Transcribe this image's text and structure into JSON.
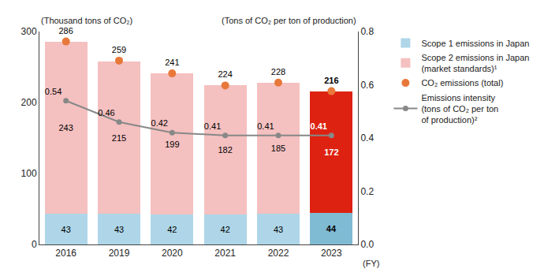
{
  "chart_data": {
    "type": "bar",
    "stacked": true,
    "data_labels": true,
    "grid": false,
    "legend": "right",
    "xlabel": "(FY)",
    "ylabel": "(Thousand tons of CO₂)",
    "y2label": "(Tons of CO₂ per ton of production)",
    "categories": [
      "2016",
      "2019",
      "2020",
      "2021",
      "2022",
      "2023"
    ],
    "series": [
      {
        "name": "Scope 1 emissions in Japan",
        "type": "bar",
        "colors": [
          "#aed6e8",
          "#aed6e8",
          "#aed6e8",
          "#aed6e8",
          "#aed6e8",
          "#80bbd4"
        ],
        "values": [
          43,
          43,
          42,
          42,
          43,
          44
        ]
      },
      {
        "name": "Scope 2 emissions in Japan\n(market standards)¹",
        "type": "bar",
        "colors": [
          "#f5c0c0",
          "#f5c0c0",
          "#f5c0c0",
          "#f5c0c0",
          "#f5c0c0",
          "#dd2211"
        ],
        "values": [
          243,
          215,
          199,
          182,
          185,
          172
        ]
      },
      {
        "name": "CO₂ emissions (total)",
        "type": "scatter",
        "marker": "circle",
        "color": "#e8783a",
        "values": [
          286,
          259,
          241,
          224,
          228,
          216
        ]
      },
      {
        "name": "Emissions intensity\n(tons of CO₂ per ton\nof production)²",
        "type": "line",
        "marker": "circle",
        "axis": "y2",
        "color": "#888888",
        "values": [
          0.54,
          0.46,
          0.42,
          0.41,
          0.41,
          0.41
        ]
      }
    ],
    "ylim": [
      0,
      300
    ],
    "yticks": [
      0,
      100,
      200,
      300
    ],
    "y2lim": [
      0,
      0.8
    ],
    "y2ticks": [
      {
        "value": 0,
        "label": "0.0"
      },
      0.2,
      0.4,
      0.6,
      0.8
    ]
  }
}
